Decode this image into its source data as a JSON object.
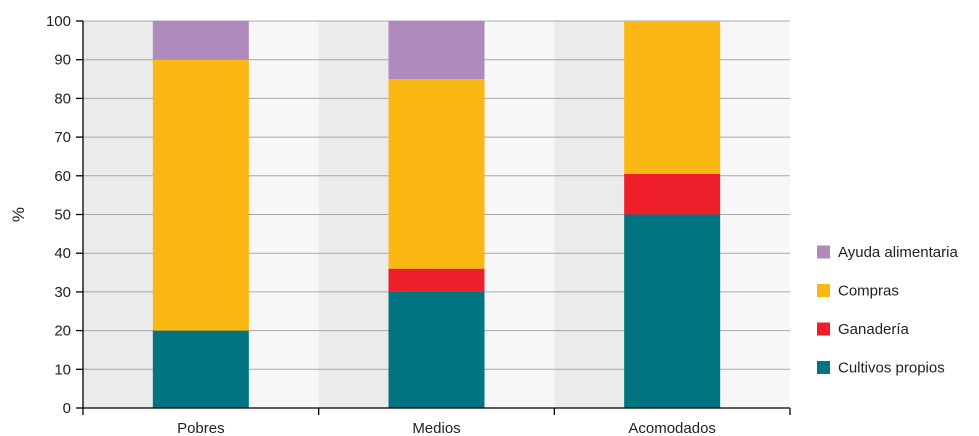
{
  "chart_data": {
    "type": "bar",
    "stacked": true,
    "categories": [
      "Pobres",
      "Medios",
      "Acomodados"
    ],
    "series": [
      {
        "name": "Cultivos propios",
        "color": "#007480",
        "values": [
          20,
          30,
          50
        ]
      },
      {
        "name": "Ganadería",
        "color": "#ee1f2b",
        "values": [
          0,
          6,
          10.5
        ]
      },
      {
        "name": "Compras",
        "color": "#fbb713",
        "values": [
          70,
          49,
          39.5
        ]
      },
      {
        "name": "Ayuda alimentaria",
        "color": "#b08abd",
        "values": [
          10,
          15,
          0
        ]
      }
    ],
    "ylabel": "%",
    "ylim": [
      0,
      100
    ],
    "yticks": [
      "0",
      "10",
      "20",
      "30",
      "40",
      "50",
      "60",
      "70",
      "80",
      "90",
      "100"
    ],
    "grid": true,
    "legend_position": "right",
    "legend_order": [
      "Ayuda alimentaria",
      "Compras",
      "Ganadería",
      "Cultivos propios"
    ]
  }
}
